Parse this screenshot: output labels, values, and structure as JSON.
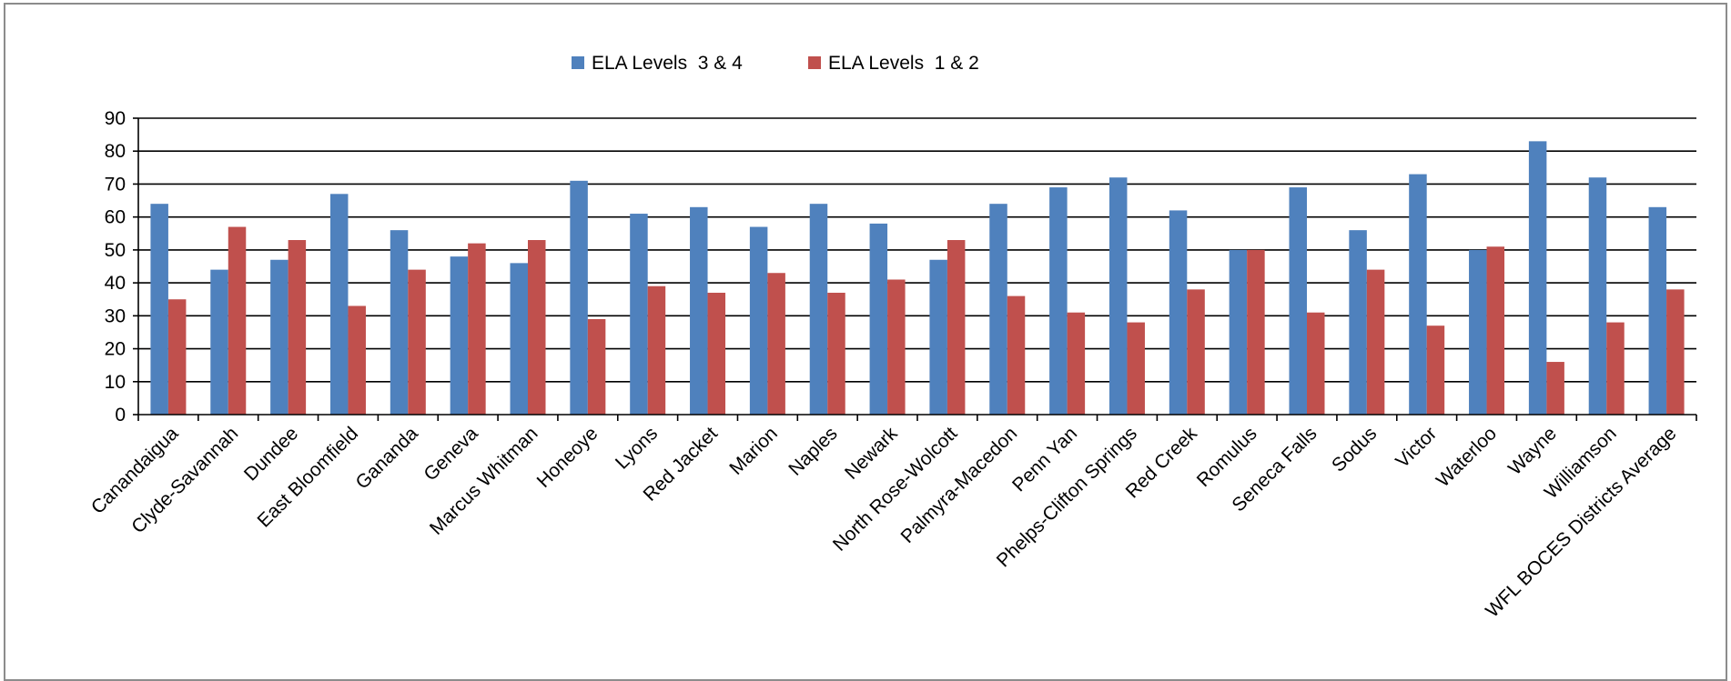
{
  "chart_data": {
    "type": "bar",
    "title": "",
    "xlabel": "",
    "ylabel": "",
    "ylim": [
      0,
      90
    ],
    "yticks": [
      0,
      10,
      20,
      30,
      40,
      50,
      60,
      70,
      80,
      90
    ],
    "grid": true,
    "legend_position": "top-center",
    "categories": [
      "Canandaigua",
      "Clyde-Savannah",
      "Dundee",
      "East Bloomfield",
      "Gananda",
      "Geneva",
      "Marcus Whitman",
      "Honeoye",
      "Lyons",
      "Red Jacket",
      "Marion",
      "Naples",
      "Newark",
      "North Rose-Wolcott",
      "Palmyra-Macedon",
      "Penn Yan",
      "Phelps-Clifton Springs",
      "Red Creek",
      "Romulus",
      "Seneca Falls",
      "Sodus",
      "Victor",
      "Waterloo",
      "Wayne",
      "Williamson",
      "WFL BOCES Districts Average"
    ],
    "series": [
      {
        "name": "ELA Levels  3 & 4",
        "color": "#4f81bd",
        "values": [
          64,
          44,
          47,
          67,
          56,
          48,
          46,
          71,
          61,
          63,
          57,
          64,
          58,
          47,
          64,
          69,
          72,
          62,
          50,
          69,
          56,
          73,
          50,
          83,
          72,
          63
        ]
      },
      {
        "name": "ELA Levels  1 & 2",
        "color": "#c0504d",
        "values": [
          35,
          57,
          53,
          33,
          44,
          52,
          53,
          29,
          39,
          37,
          43,
          37,
          41,
          53,
          36,
          31,
          28,
          38,
          50,
          31,
          44,
          27,
          51,
          16,
          28,
          38
        ]
      }
    ]
  }
}
